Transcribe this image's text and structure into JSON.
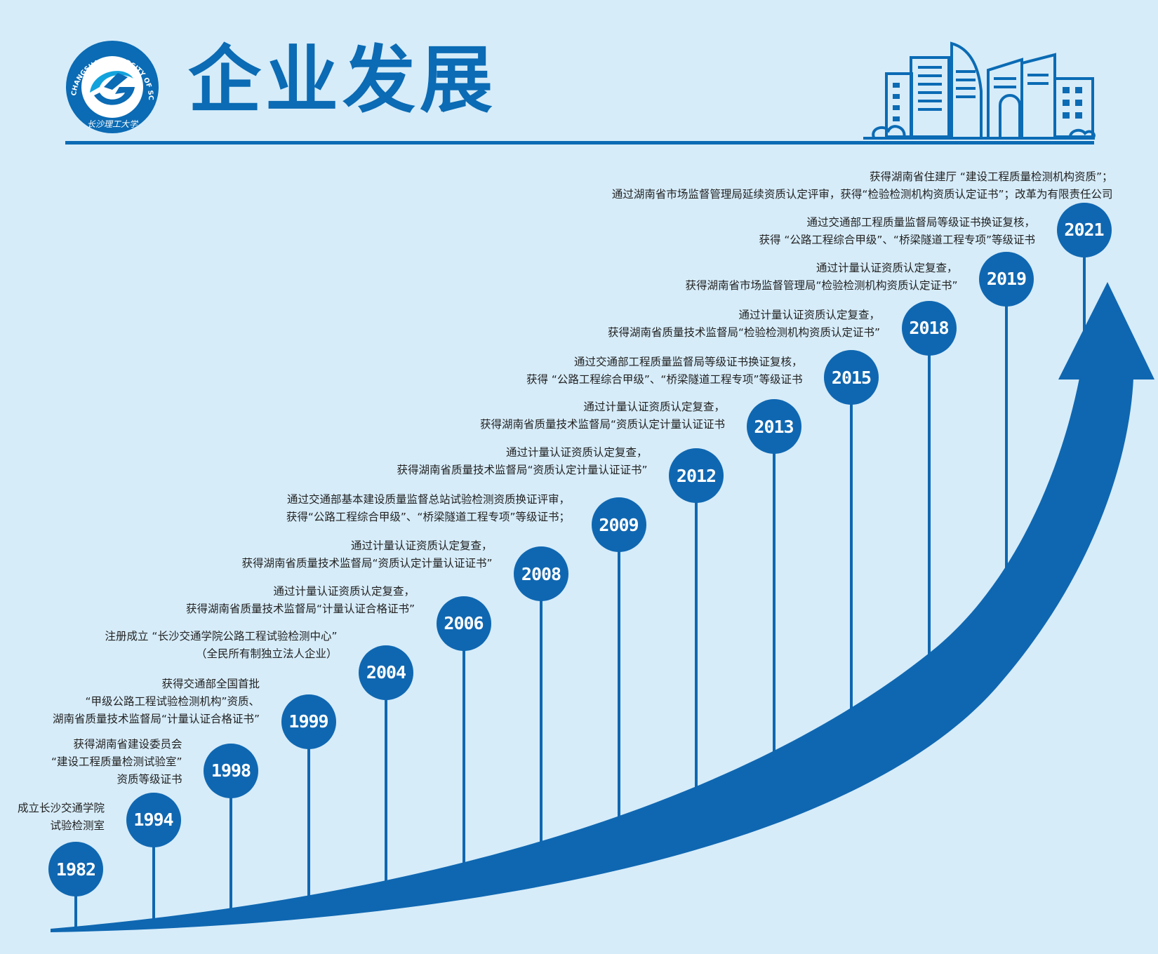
{
  "header": {
    "title": "企业发展",
    "logo_ring_text": "CHANGSHA UNIVERSITY OF SCIENCE & TECHNOLOGY",
    "logo_script_text": "长沙理工大学"
  },
  "colors": {
    "background": "#d6ecf9",
    "brand_blue": "#0b6bb4",
    "milestone_circle": "#0f67b1"
  },
  "icons": [
    "university-logo",
    "city-buildings-icon",
    "growth-arrow"
  ],
  "milestones": [
    {
      "year": "1982",
      "lines": [
        "成立长沙交通学院",
        "试验检测室"
      ]
    },
    {
      "year": "1994",
      "lines": [
        "获得湖南省建设委员会",
        "“建设工程质量检测试验室”",
        "资质等级证书"
      ]
    },
    {
      "year": "1998",
      "lines": [
        "获得交通部全国首批",
        "“甲级公路工程试验检测机构”资质、",
        "湖南省质量技术监督局“计量认证合格证书”"
      ]
    },
    {
      "year": "1999",
      "lines": [
        "注册成立 “长沙交通学院公路工程试验检测中心”",
        "（全民所有制独立法人企业）"
      ]
    },
    {
      "year": "2004",
      "lines": [
        "通过计量认证资质认定复查，",
        "获得湖南省质量技术监督局“计量认证合格证书”"
      ]
    },
    {
      "year": "2006",
      "lines": [
        "通过计量认证资质认定复查，",
        "获得湖南省质量技术监督局“资质认定计量认证证书”"
      ]
    },
    {
      "year": "2008",
      "lines": [
        "通过交通部基本建设质量监督总站试验检测资质换证评审，",
        "获得“公路工程综合甲级”、“桥梁隧道工程专项”等级证书；"
      ]
    },
    {
      "year": "2009",
      "lines": [
        "通过计量认证资质认定复查，",
        "获得湖南省质量技术监督局“资质认定计量认证证书”"
      ]
    },
    {
      "year": "2012",
      "lines": [
        "通过计量认证资质认定复查，",
        "获得湖南省质量技术监督局“资质认定计量认证证书"
      ]
    },
    {
      "year": "2013",
      "lines": [
        "通过交通部工程质量监督局等级证书换证复核，",
        "获得 “公路工程综合甲级”、“桥梁隧道工程专项”等级证书"
      ]
    },
    {
      "year": "2015",
      "lines": [
        "通过计量认证资质认定复查，",
        "获得湖南省质量技术监督局“检验检测机构资质认定证书”"
      ]
    },
    {
      "year": "2018",
      "lines": [
        "通过计量认证资质认定复查，",
        "获得湖南省市场监督管理局“检验检测机构资质认定证书”"
      ]
    },
    {
      "year": "2019",
      "lines": [
        "通过交通部工程质量监督局等级证书换证复核，",
        "获得 “公路工程综合甲级”、“桥梁隧道工程专项”等级证书"
      ]
    },
    {
      "year": "2021",
      "lines": [
        "获得湖南省住建厅 “建设工程质量检测机构资质”；",
        "通过湖南省市场监督管理局延续资质认定评审，获得“检验检测机构资质认定证书”；改革为有限责任公司"
      ]
    }
  ]
}
